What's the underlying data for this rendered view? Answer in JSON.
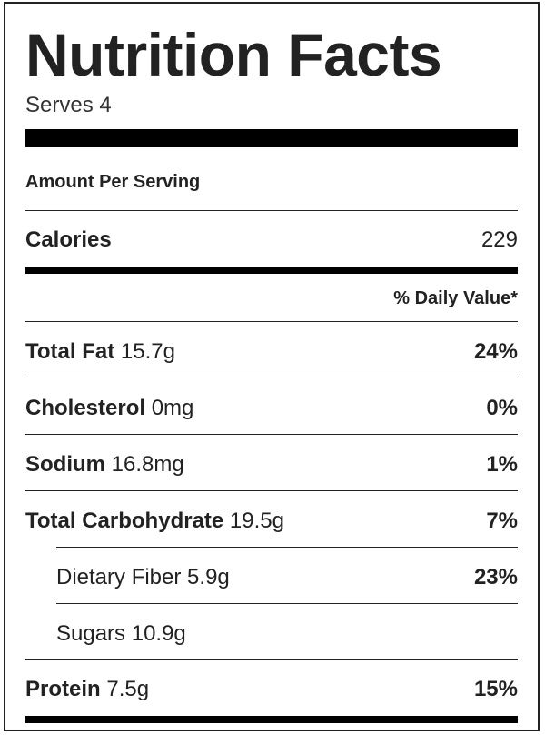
{
  "title": "Nutrition Facts",
  "serves": "Serves 4",
  "amount_per_serving": "Amount Per Serving",
  "calories": {
    "label": "Calories",
    "value": "229"
  },
  "daily_value_header": "% Daily Value*",
  "nutrients": [
    {
      "label": "Total Fat",
      "amount": "15.7g",
      "pct": "24%"
    },
    {
      "label": "Cholesterol",
      "amount": "0mg",
      "pct": "0%"
    },
    {
      "label": "Sodium",
      "amount": "16.8mg",
      "pct": "1%"
    },
    {
      "label": "Total Carbohydrate",
      "amount": "19.5g",
      "pct": "7%"
    },
    {
      "label": "Dietary Fiber",
      "amount": "5.9g",
      "pct": "23%"
    },
    {
      "label": "Sugars",
      "amount": "10.9g",
      "pct": ""
    },
    {
      "label": "Protein",
      "amount": "7.5g",
      "pct": "15%"
    }
  ]
}
